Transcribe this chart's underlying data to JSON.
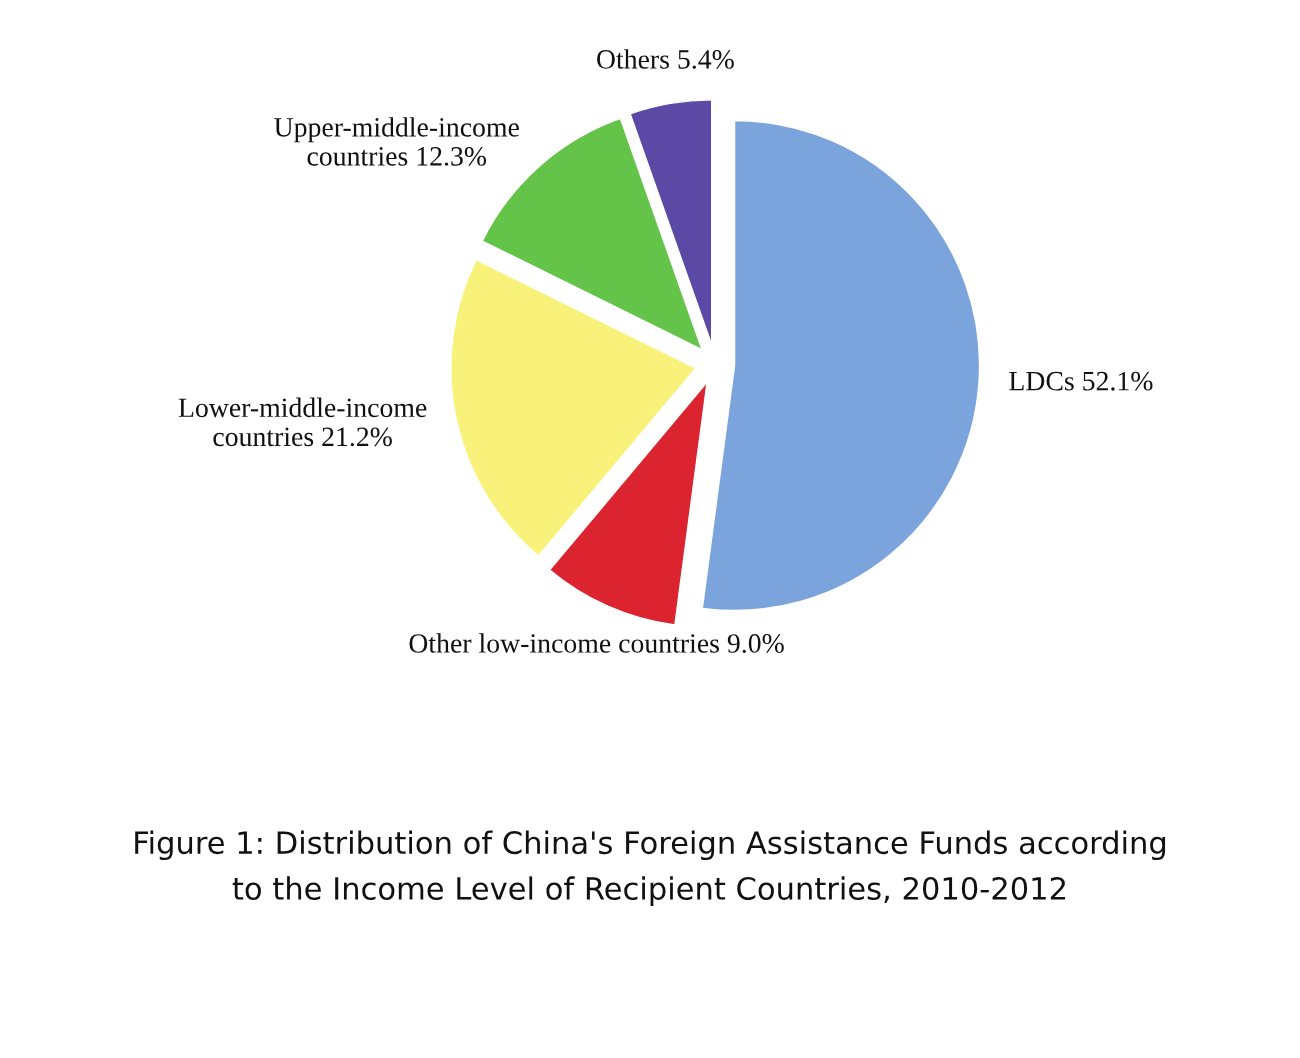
{
  "chart_data": {
    "type": "pie",
    "title": "Figure 1: Distribution of China's Foreign Assistance Funds according to the Income Level of Recipient Countries, 2010-2012",
    "categories": [
      "LDCs",
      "Other low-income countries",
      "Lower-middle-income countries",
      "Upper-middle-income countries",
      "Others"
    ],
    "values": [
      52.1,
      9.0,
      21.2,
      12.3,
      5.4
    ],
    "value_labels": [
      "52.1%",
      "9.0%",
      "21.2%",
      "12.3%",
      "5.4%"
    ],
    "colors": [
      "#7ba4dc",
      "#dc2430",
      "#f9f27a",
      "#64c44a",
      "#5b49a6"
    ]
  }
}
